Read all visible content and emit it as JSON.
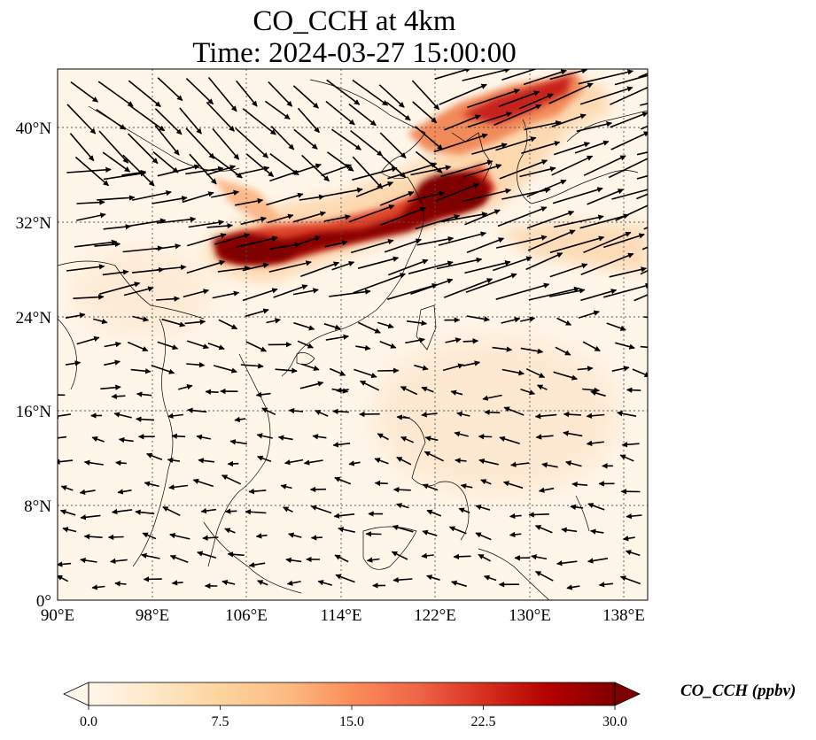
{
  "title_line1": "CO_CCH at 4km",
  "title_line2": "Time: 2024-03-27 15:00:00",
  "map": {
    "lon_range": [
      90,
      140
    ],
    "lat_range": [
      0,
      45
    ],
    "lon_ticks": [
      "90°E",
      "98°E",
      "106°E",
      "114°E",
      "122°E",
      "130°E",
      "138°E"
    ],
    "lat_ticks": [
      "0°",
      "8°N",
      "16°N",
      "24°N",
      "32°N",
      "40°N"
    ],
    "colormap": "OrRd"
  },
  "colorbar": {
    "label": "CO_CCH (ppbv)",
    "ticks": [
      "0.0",
      "7.5",
      "15.0",
      "22.5",
      "30.0"
    ],
    "range": [
      0,
      30
    ],
    "colors": [
      "#fff7ec",
      "#fee8c8",
      "#fdd49e",
      "#fdbb84",
      "#fc8d59",
      "#ef6548",
      "#d7301f",
      "#b30000",
      "#7f0000"
    ]
  }
}
